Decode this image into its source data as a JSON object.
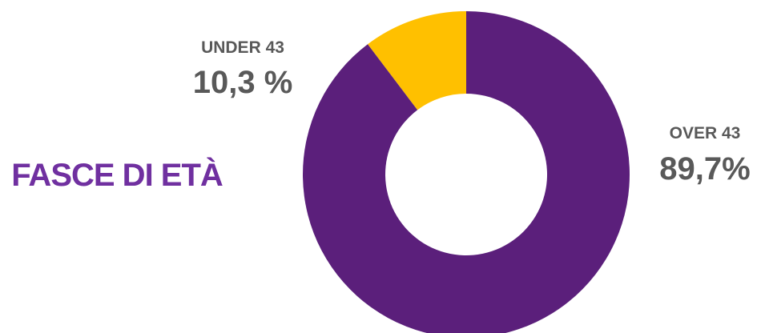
{
  "chart_data": {
    "type": "donut",
    "title": "FASCE DI ETÀ",
    "categories": [
      "UNDER 43",
      "OVER 43"
    ],
    "values": [
      10.3,
      89.7
    ],
    "value_labels": [
      "10,3 %",
      "89,7%"
    ],
    "colors": [
      "#ffc000",
      "#5b1f7b"
    ]
  }
}
